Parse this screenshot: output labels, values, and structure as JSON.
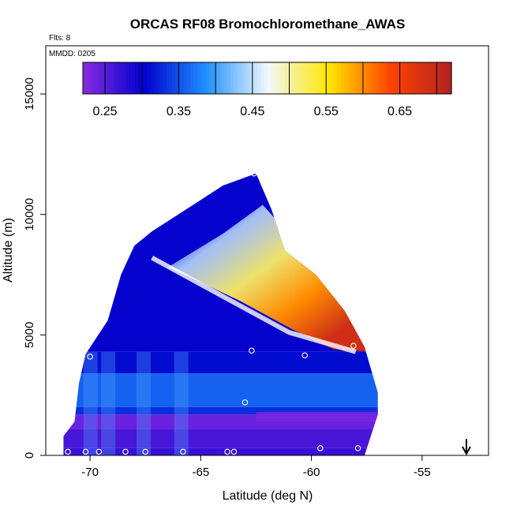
{
  "chart_data": {
    "type": "heatmap",
    "title": "ORCAS RF08 Bromochloromethane_AWAS",
    "note_flts": "Flts: 8",
    "note_mmdd": "MMDD: 0205",
    "xlabel": "Latitude (deg N)",
    "ylabel": "Altitude (m)",
    "xlim": [
      -72,
      -52
    ],
    "ylim": [
      0,
      17000
    ],
    "x_ticks": [
      {
        "value": -70,
        "label": "-70"
      },
      {
        "value": -65,
        "label": "-65"
      },
      {
        "value": -60,
        "label": "-60"
      },
      {
        "value": -55,
        "label": "-55"
      }
    ],
    "y_ticks": [
      {
        "value": 0,
        "label": "0"
      },
      {
        "value": 5000,
        "label": "5000"
      },
      {
        "value": 10000,
        "label": "10000"
      },
      {
        "value": 15000,
        "label": "15000"
      }
    ],
    "colorbar": {
      "range": [
        0.22,
        0.72
      ],
      "tick_values": [
        0.25,
        0.35,
        0.45,
        0.55,
        0.65
      ],
      "tick_labels": [
        "0.25",
        "0.35",
        "0.45",
        "0.55",
        "0.65"
      ],
      "colors": [
        "#8a2be2",
        "#0000cd",
        "#1e90ff",
        "#f0f8ff",
        "#ffe600",
        "#ff4500",
        "#b22222"
      ]
    },
    "region_outline": [
      [
        -71.2,
        0
      ],
      [
        -71.2,
        800
      ],
      [
        -70.7,
        1400
      ],
      [
        -70.5,
        3000
      ],
      [
        -70.2,
        4200
      ],
      [
        -69.2,
        5600
      ],
      [
        -68.6,
        7500
      ],
      [
        -68.0,
        8700
      ],
      [
        -67.2,
        9300
      ],
      [
        -65.0,
        10600
      ],
      [
        -64.0,
        11200
      ],
      [
        -62.5,
        11700
      ],
      [
        -61.8,
        10200
      ],
      [
        -61.2,
        8500
      ],
      [
        -59.8,
        7500
      ],
      [
        -58.5,
        6000
      ],
      [
        -57.6,
        4500
      ],
      [
        -57.0,
        2600
      ],
      [
        -57.0,
        1700
      ],
      [
        -57.6,
        0
      ]
    ],
    "data_bands": [
      {
        "lat": [
          -71.2,
          -57.0
        ],
        "alt": [
          0,
          300
        ],
        "value": 0.27
      },
      {
        "lat": [
          -71.2,
          -57.0
        ],
        "alt": [
          300,
          1100
        ],
        "value": 0.26
      },
      {
        "lat": [
          -71.2,
          -57.0
        ],
        "alt": [
          1100,
          1700
        ],
        "value": 0.24
      },
      {
        "lat": [
          -71.2,
          -57.0
        ],
        "alt": [
          1700,
          2000
        ],
        "value": 0.33
      },
      {
        "lat": [
          -71.2,
          -57.0
        ],
        "alt": [
          2000,
          3400
        ],
        "value": 0.36
      },
      {
        "lat": [
          -71.2,
          -57.0
        ],
        "alt": [
          3400,
          4300
        ],
        "value": 0.31
      },
      {
        "lat": [
          -71.2,
          -57.0
        ],
        "alt": [
          4300,
          11700
        ],
        "value": 0.3
      }
    ],
    "plume": {
      "description_values": [
        0.45,
        0.55,
        0.65
      ],
      "lat_range": [
        -64,
        -58
      ],
      "alt_range": [
        4500,
        8200
      ],
      "peak_value": 0.69
    },
    "sample_points": [
      {
        "lat": -71.0,
        "alt": 150
      },
      {
        "lat": -70.2,
        "alt": 150
      },
      {
        "lat": -69.6,
        "alt": 150
      },
      {
        "lat": -68.4,
        "alt": 150
      },
      {
        "lat": -67.5,
        "alt": 150
      },
      {
        "lat": -65.8,
        "alt": 150
      },
      {
        "lat": -63.8,
        "alt": 150
      },
      {
        "lat": -63.5,
        "alt": 150
      },
      {
        "lat": -59.6,
        "alt": 300
      },
      {
        "lat": -57.9,
        "alt": 300
      },
      {
        "lat": -70.8,
        "alt": 1900
      },
      {
        "lat": -63.0,
        "alt": 2200
      },
      {
        "lat": -70.0,
        "alt": 4100
      },
      {
        "lat": -62.7,
        "alt": 4350
      },
      {
        "lat": -60.3,
        "alt": 4150
      },
      {
        "lat": -58.1,
        "alt": 4550
      },
      {
        "lat": -68.2,
        "alt": 8600
      },
      {
        "lat": -62.6,
        "alt": 11700
      }
    ],
    "arrow_marker": {
      "lat": -53,
      "direction": "down"
    },
    "grid": false
  }
}
